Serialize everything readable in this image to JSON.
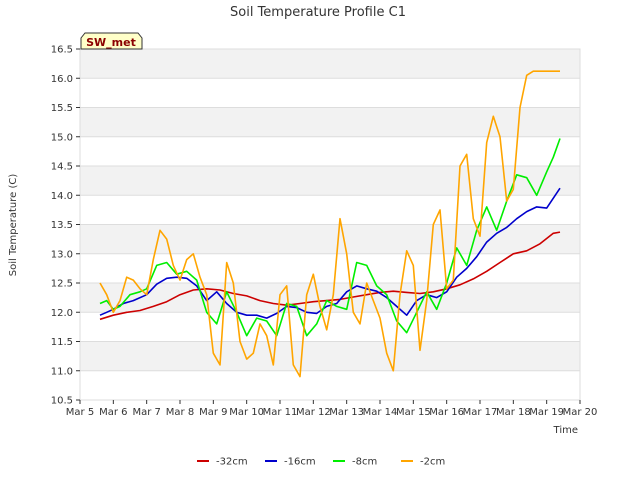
{
  "chart_data": {
    "type": "line",
    "title": "Soil Temperature Profile C1",
    "xlabel": "Time",
    "ylabel": "Soil Temperature (C)",
    "badge": "SW_met",
    "xlim": [
      0,
      15
    ],
    "ylim": [
      10.5,
      16.5
    ],
    "x_ticks": [
      {
        "value": 0,
        "label": "Mar 5"
      },
      {
        "value": 1,
        "label": "Mar 6"
      },
      {
        "value": 2,
        "label": "Mar 7"
      },
      {
        "value": 3,
        "label": "Mar 8"
      },
      {
        "value": 4,
        "label": "Mar 9"
      },
      {
        "value": 5,
        "label": "Mar 10"
      },
      {
        "value": 6,
        "label": "Mar 11"
      },
      {
        "value": 7,
        "label": "Mar 12"
      },
      {
        "value": 8,
        "label": "Mar 13"
      },
      {
        "value": 9,
        "label": "Mar 14"
      },
      {
        "value": 10,
        "label": "Mar 15"
      },
      {
        "value": 11,
        "label": "Mar 16"
      },
      {
        "value": 12,
        "label": "Mar 17"
      },
      {
        "value": 13,
        "label": "Mar 18"
      },
      {
        "value": 14,
        "label": "Mar 19"
      },
      {
        "value": 15,
        "label": "Mar 20"
      }
    ],
    "y_ticks": [
      {
        "value": 10.5,
        "label": "10.5"
      },
      {
        "value": 11.0,
        "label": "11.0"
      },
      {
        "value": 11.5,
        "label": "11.5"
      },
      {
        "value": 12.0,
        "label": "12.0"
      },
      {
        "value": 12.5,
        "label": "12.5"
      },
      {
        "value": 13.0,
        "label": "13.0"
      },
      {
        "value": 13.5,
        "label": "13.5"
      },
      {
        "value": 14.0,
        "label": "14.0"
      },
      {
        "value": 14.5,
        "label": "14.5"
      },
      {
        "value": 15.0,
        "label": "15.0"
      },
      {
        "value": 15.5,
        "label": "15.5"
      },
      {
        "value": 16.0,
        "label": "16.0"
      },
      {
        "value": 16.5,
        "label": "16.5"
      }
    ],
    "legend_position": "bottom",
    "grid": true,
    "series": [
      {
        "name": "-32cm",
        "color": "#cc0000",
        "x": [
          0.6,
          1.0,
          1.4,
          1.8,
          2.2,
          2.6,
          3.0,
          3.4,
          3.8,
          4.2,
          4.6,
          5.0,
          5.4,
          5.8,
          6.2,
          6.6,
          7.0,
          7.4,
          7.8,
          8.2,
          8.6,
          9.0,
          9.4,
          9.8,
          10.2,
          10.6,
          11.0,
          11.4,
          11.8,
          12.2,
          12.6,
          13.0,
          13.4,
          13.8,
          14.2,
          14.4
        ],
        "y": [
          11.88,
          11.95,
          12.0,
          12.03,
          12.1,
          12.18,
          12.3,
          12.38,
          12.4,
          12.38,
          12.32,
          12.28,
          12.2,
          12.15,
          12.12,
          12.15,
          12.18,
          12.2,
          12.22,
          12.26,
          12.3,
          12.34,
          12.36,
          12.34,
          12.32,
          12.35,
          12.4,
          12.47,
          12.57,
          12.7,
          12.85,
          13.0,
          13.05,
          13.17,
          13.35,
          13.37
        ]
      },
      {
        "name": "-16cm",
        "color": "#0000cc",
        "x": [
          0.6,
          0.8,
          1.0,
          1.3,
          1.6,
          2.0,
          2.3,
          2.6,
          2.9,
          3.2,
          3.5,
          3.8,
          4.1,
          4.4,
          4.7,
          5.0,
          5.3,
          5.6,
          5.9,
          6.2,
          6.5,
          6.8,
          7.1,
          7.4,
          7.7,
          8.0,
          8.3,
          8.6,
          8.9,
          9.2,
          9.5,
          9.8,
          10.1,
          10.4,
          10.7,
          11.0,
          11.3,
          11.6,
          11.9,
          12.2,
          12.5,
          12.8,
          13.1,
          13.4,
          13.7,
          14.0,
          14.2,
          14.4
        ],
        "y": [
          11.95,
          12.0,
          12.05,
          12.15,
          12.2,
          12.3,
          12.48,
          12.58,
          12.6,
          12.58,
          12.45,
          12.2,
          12.35,
          12.15,
          12.0,
          11.95,
          11.95,
          11.9,
          11.98,
          12.1,
          12.08,
          12.0,
          11.98,
          12.1,
          12.15,
          12.35,
          12.45,
          12.4,
          12.36,
          12.25,
          12.1,
          11.95,
          12.2,
          12.3,
          12.25,
          12.35,
          12.6,
          12.75,
          12.95,
          13.2,
          13.35,
          13.45,
          13.6,
          13.72,
          13.8,
          13.78,
          13.95,
          14.12
        ]
      },
      {
        "name": "-8cm",
        "color": "#00ee00",
        "x": [
          0.6,
          0.8,
          1.0,
          1.2,
          1.5,
          1.8,
          2.0,
          2.3,
          2.6,
          2.9,
          3.2,
          3.5,
          3.8,
          4.1,
          4.4,
          4.7,
          5.0,
          5.3,
          5.6,
          5.9,
          6.2,
          6.5,
          6.8,
          7.1,
          7.4,
          7.7,
          8.0,
          8.3,
          8.6,
          8.9,
          9.2,
          9.5,
          9.8,
          10.1,
          10.4,
          10.7,
          11.0,
          11.3,
          11.6,
          11.9,
          12.2,
          12.5,
          12.8,
          13.1,
          13.4,
          13.7,
          14.0,
          14.2,
          14.4
        ],
        "y": [
          12.15,
          12.2,
          12.05,
          12.1,
          12.3,
          12.35,
          12.4,
          12.8,
          12.85,
          12.65,
          12.7,
          12.55,
          12.0,
          11.8,
          12.35,
          12.0,
          11.6,
          11.9,
          11.85,
          11.6,
          12.15,
          12.1,
          11.6,
          11.8,
          12.2,
          12.1,
          12.05,
          12.85,
          12.8,
          12.45,
          12.3,
          11.85,
          11.65,
          12.0,
          12.35,
          12.05,
          12.5,
          13.1,
          12.8,
          13.4,
          13.8,
          13.4,
          13.9,
          14.35,
          14.3,
          14.0,
          14.4,
          14.65,
          14.97
        ]
      },
      {
        "name": "-2cm",
        "color": "#ffa500",
        "x": [
          0.6,
          0.8,
          1.0,
          1.2,
          1.4,
          1.6,
          1.8,
          2.0,
          2.2,
          2.4,
          2.6,
          2.8,
          3.0,
          3.2,
          3.4,
          3.6,
          3.8,
          4.0,
          4.2,
          4.4,
          4.6,
          4.8,
          5.0,
          5.2,
          5.4,
          5.6,
          5.8,
          6.0,
          6.2,
          6.4,
          6.6,
          6.8,
          7.0,
          7.2,
          7.4,
          7.6,
          7.8,
          8.0,
          8.2,
          8.4,
          8.6,
          8.8,
          9.0,
          9.2,
          9.4,
          9.6,
          9.8,
          10.0,
          10.2,
          10.4,
          10.6,
          10.8,
          11.0,
          11.2,
          11.4,
          11.6,
          11.8,
          12.0,
          12.2,
          12.4,
          12.6,
          12.8,
          13.0,
          13.2,
          13.4,
          13.6,
          13.8,
          14.0,
          14.2,
          14.4
        ],
        "y": [
          12.5,
          12.3,
          12.0,
          12.2,
          12.6,
          12.55,
          12.4,
          12.3,
          12.9,
          13.4,
          13.25,
          12.8,
          12.55,
          12.9,
          13.0,
          12.6,
          12.3,
          11.3,
          11.1,
          12.85,
          12.5,
          11.5,
          11.2,
          11.3,
          11.8,
          11.6,
          11.1,
          12.3,
          12.45,
          11.1,
          10.9,
          12.3,
          12.65,
          12.1,
          11.7,
          12.3,
          13.6,
          13.0,
          12.0,
          11.8,
          12.5,
          12.2,
          11.9,
          11.3,
          11.0,
          12.3,
          13.05,
          12.8,
          11.35,
          12.2,
          13.5,
          13.75,
          12.4,
          12.55,
          14.5,
          14.7,
          13.6,
          13.3,
          14.9,
          15.35,
          15.0,
          13.9,
          14.1,
          15.5,
          16.05,
          16.12,
          16.12,
          16.12,
          16.12,
          16.12
        ]
      }
    ]
  }
}
